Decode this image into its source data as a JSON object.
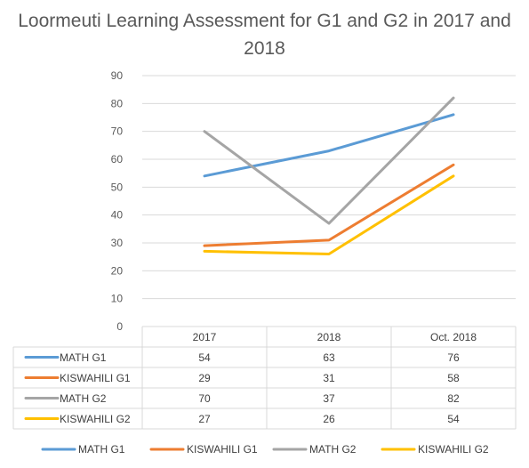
{
  "chart_data": {
    "type": "line",
    "title": "Loormeuti Learning Assessment for G1 and G2 in 2017 and 2018",
    "categories": [
      "2017",
      "2018",
      "Oct. 2018"
    ],
    "ylim": [
      0,
      90
    ],
    "yticks": [
      0,
      10,
      20,
      30,
      40,
      50,
      60,
      70,
      80,
      90
    ],
    "grid": true,
    "legend_position": "bottom",
    "data_table": true,
    "series": [
      {
        "name": "MATH G1",
        "values": [
          54,
          63,
          76
        ],
        "color": "#5b9bd5"
      },
      {
        "name": "KISWAHILI G1",
        "values": [
          29,
          31,
          58
        ],
        "color": "#ed7d31"
      },
      {
        "name": "MATH G2",
        "values": [
          70,
          37,
          82
        ],
        "color": "#a5a5a5"
      },
      {
        "name": "KISWAHILI G2",
        "values": [
          27,
          26,
          54
        ],
        "color": "#ffc000"
      }
    ]
  }
}
